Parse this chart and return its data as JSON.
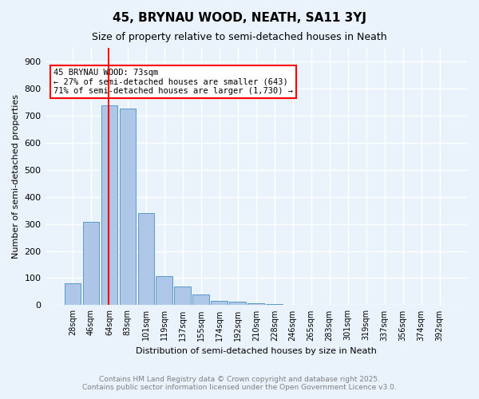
{
  "title": "45, BRYNAU WOOD, NEATH, SA11 3YJ",
  "subtitle": "Size of property relative to semi-detached houses in Neath",
  "xlabel": "Distribution of semi-detached houses by size in Neath",
  "ylabel": "Number of semi-detached properties",
  "categories": [
    "28sqm",
    "46sqm",
    "64sqm",
    "83sqm",
    "101sqm",
    "119sqm",
    "137sqm",
    "155sqm",
    "174sqm",
    "192sqm",
    "210sqm",
    "228sqm",
    "246sqm",
    "265sqm",
    "283sqm",
    "301sqm",
    "319sqm",
    "337sqm",
    "356sqm",
    "374sqm",
    "392sqm"
  ],
  "values": [
    80,
    308,
    738,
    725,
    340,
    107,
    68,
    40,
    15,
    12,
    8,
    5,
    2,
    0,
    0,
    0,
    0,
    0,
    0,
    0,
    0
  ],
  "bar_color": "#aec6e8",
  "bar_edge_color": "#5a9ac8",
  "red_line_x": 2,
  "red_line_label": "45 BRYNAU WOOD: 73sqm",
  "annotation_line1": "45 BRYNAU WOOD: 73sqm",
  "annotation_line2": "← 27% of semi-detached houses are smaller (643)",
  "annotation_line3": "71% of semi-detached houses are larger (1,730) →",
  "annotation_box_color": "red",
  "ylim": [
    0,
    950
  ],
  "yticks": [
    0,
    100,
    200,
    300,
    400,
    500,
    600,
    700,
    800,
    900
  ],
  "footer1": "Contains HM Land Registry data © Crown copyright and database right 2025.",
  "footer2": "Contains public sector information licensed under the Open Government Licence v3.0.",
  "bg_color": "#eaf3fb",
  "plot_bg_color": "#eaf3fb",
  "grid_color": "white"
}
